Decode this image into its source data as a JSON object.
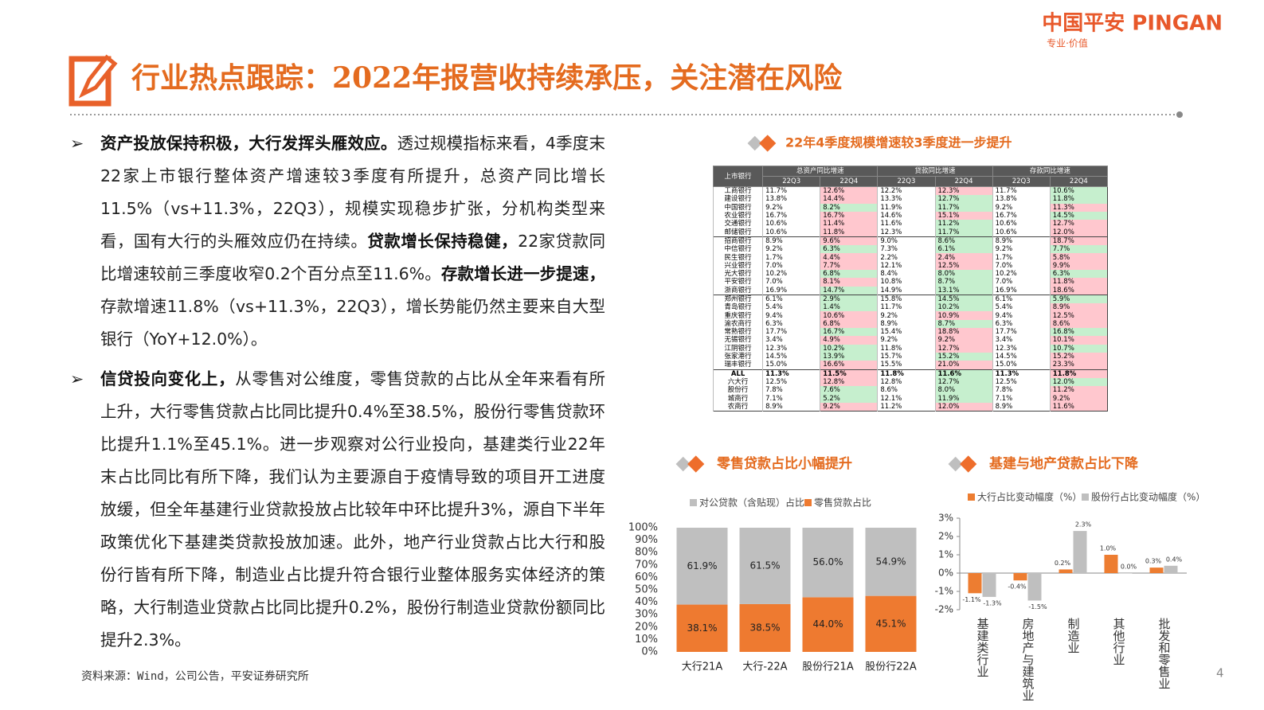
{
  "header": {
    "logo": "中国平安 PINGAN",
    "slogan": "专业·价值",
    "title": "行业热点跟踪：2022年报营收持续承压，关注潜在风险",
    "page": "4"
  },
  "bullets": [
    {
      "runs": [
        {
          "text": "资产投放保持积极，大行发挥头雁效应。",
          "bold": true
        },
        {
          "text": "透过规模指标来看，4季度末22家上市银行整体资产增速较3季度有所提升，总资产同比增长11.5%（vs+11.3%，22Q3），规模实现稳步扩张，分机构类型来看，国有大行的头雁效应仍在持续。",
          "bold": false
        },
        {
          "text": "贷款增长保持稳健，",
          "bold": true
        },
        {
          "text": "22家贷款同比增速较前三季度收窄0.2个百分点至11.6%。",
          "bold": false
        },
        {
          "text": "存款增长进一步提速，",
          "bold": true
        },
        {
          "text": "存款增速11.8%（vs+11.3%，22Q3），增长势能仍然主要来自大型银行（YoY+12.0%）。",
          "bold": false
        }
      ]
    },
    {
      "runs": [
        {
          "text": "信贷投向变化上，",
          "bold": true
        },
        {
          "text": "从零售对公维度，零售贷款的占比从全年来看有所上升，大行零售贷款占比同比提升0.4%至38.5%，股份行零售贷款环比提升1.1%至45.1%。进一步观察对公行业投向，基建类行业22年末占比同比有所下降，我们认为主要源自于疫情导致的项目开工进度放缓，但全年基建行业贷款投放占比较年中环比提升3%，源自下半年政策优化下基建类贷款投放加速。此外，地产行业贷款占比大行和股份行皆有所下降，制造业占比提升符合银行业整体服务实体经济的策略，大行制造业贷款占比同比提升0.2%，股份行制造业贷款份额同比提升2.3%。",
          "bold": false
        }
      ]
    }
  ],
  "source": "资料来源：Wind，公司公告，平安证券研究所",
  "table": {
    "title": "22年4季度规模增速较3季度进一步提升",
    "corner": "上市银行",
    "groups": [
      "总资产同比增速",
      "贷款同比增速",
      "存款同比增速"
    ],
    "periods": [
      "22Q3",
      "22Q4",
      "22Q3",
      "22Q4",
      "22Q3",
      "22Q4"
    ],
    "up_color": "#ffc7ce",
    "down_color": "#c6efce",
    "rows": [
      [
        "工商银行",
        "11.7%",
        "12.6%",
        "12.2%",
        "12.3%",
        "11.7%",
        "10.6%"
      ],
      [
        "建设银行",
        "13.8%",
        "14.4%",
        "13.3%",
        "12.7%",
        "13.8%",
        "11.8%"
      ],
      [
        "中国银行",
        "9.2%",
        "8.2%",
        "11.9%",
        "11.7%",
        "9.2%",
        "11.3%"
      ],
      [
        "农业银行",
        "16.7%",
        "16.7%",
        "14.6%",
        "15.1%",
        "16.7%",
        "14.5%"
      ],
      [
        "交通银行",
        "10.6%",
        "11.4%",
        "11.6%",
        "11.2%",
        "10.6%",
        "12.7%"
      ],
      [
        "邮储银行",
        "10.6%",
        "11.8%",
        "12.3%",
        "11.7%",
        "10.6%",
        "12.0%"
      ],
      [
        "招商银行",
        "8.9%",
        "9.6%",
        "9.0%",
        "8.6%",
        "8.9%",
        "18.7%"
      ],
      [
        "中信银行",
        "9.2%",
        "6.3%",
        "7.3%",
        "6.1%",
        "9.2%",
        "7.7%"
      ],
      [
        "民生银行",
        "1.7%",
        "4.4%",
        "2.2%",
        "2.4%",
        "1.7%",
        "5.8%"
      ],
      [
        "兴业银行",
        "7.0%",
        "7.7%",
        "12.1%",
        "12.5%",
        "7.0%",
        "9.9%"
      ],
      [
        "光大银行",
        "10.2%",
        "6.8%",
        "8.4%",
        "8.0%",
        "10.2%",
        "6.3%"
      ],
      [
        "平安银行",
        "7.0%",
        "8.1%",
        "10.8%",
        "8.7%",
        "7.0%",
        "11.8%"
      ],
      [
        "浙商银行",
        "16.9%",
        "14.7%",
        "14.9%",
        "13.1%",
        "16.9%",
        "18.6%"
      ],
      [
        "郑州银行",
        "6.1%",
        "2.9%",
        "15.8%",
        "14.5%",
        "6.1%",
        "5.9%"
      ],
      [
        "青岛银行",
        "5.4%",
        "1.4%",
        "11.7%",
        "10.2%",
        "5.4%",
        "8.9%"
      ],
      [
        "重庆银行",
        "9.4%",
        "10.6%",
        "9.2%",
        "10.9%",
        "9.4%",
        "12.5%"
      ],
      [
        "渝农商行",
        "6.3%",
        "6.8%",
        "8.9%",
        "8.7%",
        "6.3%",
        "8.6%"
      ],
      [
        "常熟银行",
        "17.7%",
        "16.7%",
        "15.4%",
        "18.8%",
        "17.7%",
        "16.8%"
      ],
      [
        "无锡银行",
        "3.4%",
        "4.9%",
        "9.2%",
        "9.2%",
        "3.4%",
        "10.1%"
      ],
      [
        "江阴银行",
        "12.3%",
        "10.2%",
        "11.8%",
        "12.7%",
        "12.3%",
        "10.7%"
      ],
      [
        "张家港行",
        "14.5%",
        "13.9%",
        "15.7%",
        "15.2%",
        "14.5%",
        "15.2%"
      ],
      [
        "瑞丰银行",
        "15.0%",
        "16.6%",
        "15.5%",
        "21.0%",
        "15.0%",
        "23.3%"
      ],
      [
        "ALL",
        "11.3%",
        "11.5%",
        "11.8%",
        "11.6%",
        "11.3%",
        "11.8%"
      ],
      [
        "六大行",
        "12.5%",
        "12.8%",
        "12.8%",
        "12.7%",
        "12.5%",
        "12.0%"
      ],
      [
        "股份行",
        "7.8%",
        "7.6%",
        "8.6%",
        "8.0%",
        "7.8%",
        "11.2%"
      ],
      [
        "城商行",
        "7.1%",
        "5.2%",
        "12.1%",
        "11.9%",
        "7.1%",
        "9.2%"
      ],
      [
        "农商行",
        "8.9%",
        "9.2%",
        "11.2%",
        "12.0%",
        "8.9%",
        "11.6%"
      ]
    ]
  },
  "chart_data": [
    {
      "type": "bar",
      "stacked": true,
      "title": "零售贷款占比小幅提升",
      "categories": [
        "大行21A",
        "大行-22A",
        "股份行21A",
        "股份行22A"
      ],
      "series": [
        {
          "name": "零售贷款占比",
          "color": "#ee7a30",
          "values": [
            38.1,
            38.5,
            44.0,
            45.1
          ],
          "value_labels": [
            "38.1%",
            "38.5%",
            "44.0%",
            "45.1%"
          ]
        },
        {
          "name": "对公贷款（含贴现）占比",
          "color": "#bfbfbf",
          "values": [
            61.9,
            61.5,
            56.0,
            54.9
          ],
          "value_labels": [
            "61.9%",
            "61.5%",
            "56.0%",
            "54.9%"
          ]
        }
      ],
      "ylim": [
        0,
        100
      ],
      "yticks": [
        {
          "value": 0,
          "label": "0%"
        },
        {
          "value": 10,
          "label": "10%"
        },
        {
          "value": 20,
          "label": "20%"
        },
        {
          "value": 30,
          "label": "30%"
        },
        {
          "value": 40,
          "label": "40%"
        },
        {
          "value": 50,
          "label": "50%"
        },
        {
          "value": 60,
          "label": "60%"
        },
        {
          "value": 70,
          "label": "70%"
        },
        {
          "value": 80,
          "label": "80%"
        },
        {
          "value": 90,
          "label": "90%"
        },
        {
          "value": 100,
          "label": "100%"
        }
      ],
      "grid": false
    },
    {
      "type": "bar",
      "stacked": false,
      "title": "基建与地产贷款占比下降",
      "categories": [
        "基建类行业",
        "房地产与建筑业",
        "制造业",
        "其他行业",
        "批发和零售业"
      ],
      "series": [
        {
          "name": "大行占比变动幅度（%）",
          "color": "#ed7d31",
          "values": [
            -1.1,
            -0.4,
            0.2,
            1.0,
            0.3
          ],
          "value_labels": [
            "-1.1%",
            "-0.4%",
            "0.2%",
            "1.0%",
            "0.3%"
          ]
        },
        {
          "name": "股份行占比变动幅度（%）",
          "color": "#bfbfbf",
          "values": [
            -1.3,
            -1.5,
            2.3,
            0.0,
            0.4
          ],
          "value_labels": [
            "-1.3%",
            "-1.5%",
            "2.3%",
            "0.0%",
            "0.4%"
          ]
        }
      ],
      "ylim": [
        -2,
        3
      ],
      "yticks": [
        {
          "value": 3,
          "label": "3%"
        },
        {
          "value": 2,
          "label": "2%"
        },
        {
          "value": 1,
          "label": "1%"
        },
        {
          "value": 0,
          "label": "0%"
        },
        {
          "value": -1,
          "label": "-1%"
        },
        {
          "value": -2,
          "label": "-2%"
        }
      ],
      "grid": false
    }
  ]
}
